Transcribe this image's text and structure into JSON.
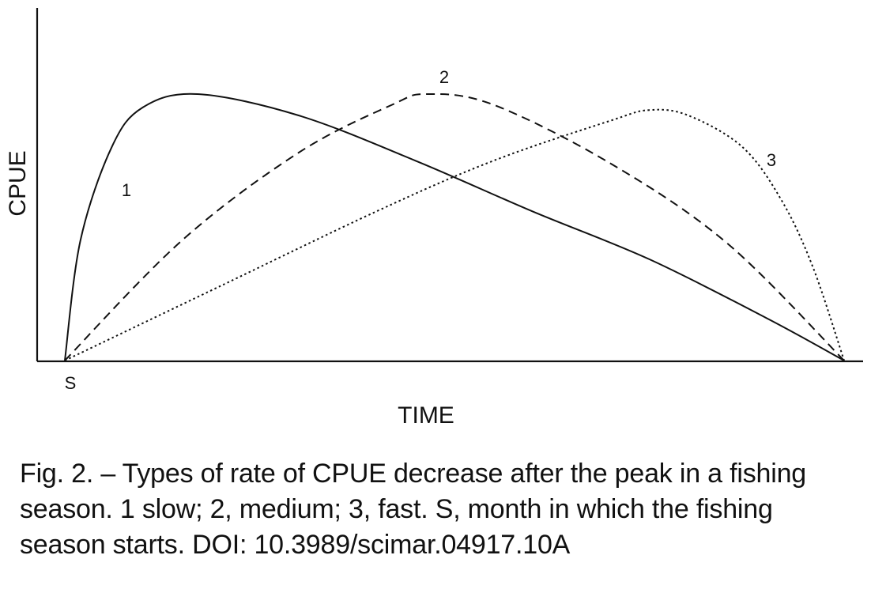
{
  "chart_data": {
    "type": "line",
    "xlabel": "TIME",
    "ylabel": "CPUE",
    "x_tick_labels": [
      "S"
    ],
    "series": [
      {
        "name": "1",
        "style": "solid",
        "color": "#111111",
        "points": [
          [
            0,
            0
          ],
          [
            0.02,
            0.45
          ],
          [
            0.06,
            0.8
          ],
          [
            0.1,
            0.95
          ],
          [
            0.17,
            1.0
          ],
          [
            0.3,
            0.92
          ],
          [
            0.45,
            0.75
          ],
          [
            0.6,
            0.56
          ],
          [
            0.75,
            0.38
          ],
          [
            0.9,
            0.16
          ],
          [
            1.0,
            0.0
          ]
        ]
      },
      {
        "name": "2",
        "style": "dashed",
        "color": "#111111",
        "points": [
          [
            0,
            0
          ],
          [
            0.15,
            0.45
          ],
          [
            0.3,
            0.78
          ],
          [
            0.42,
            0.96
          ],
          [
            0.465,
            1.0
          ],
          [
            0.55,
            0.96
          ],
          [
            0.7,
            0.74
          ],
          [
            0.85,
            0.44
          ],
          [
            1.0,
            0.0
          ]
        ]
      },
      {
        "name": "3",
        "style": "dotted",
        "color": "#111111",
        "points": [
          [
            0,
            0
          ],
          [
            0.2,
            0.28
          ],
          [
            0.4,
            0.56
          ],
          [
            0.55,
            0.75
          ],
          [
            0.7,
            0.9
          ],
          [
            0.75,
            0.94
          ],
          [
            0.8,
            0.92
          ],
          [
            0.87,
            0.8
          ],
          [
            0.92,
            0.6
          ],
          [
            0.96,
            0.35
          ],
          [
            1.0,
            0.0
          ]
        ]
      }
    ],
    "grid": false,
    "legend": "none"
  },
  "caption": "Fig. 2. – Types of rate of CPUE decrease after the peak in a fishing season. 1 slow; 2, medium; 3, fast. S, month in which the fishing season starts. DOI: 10.3989/scimar.04917.10A"
}
